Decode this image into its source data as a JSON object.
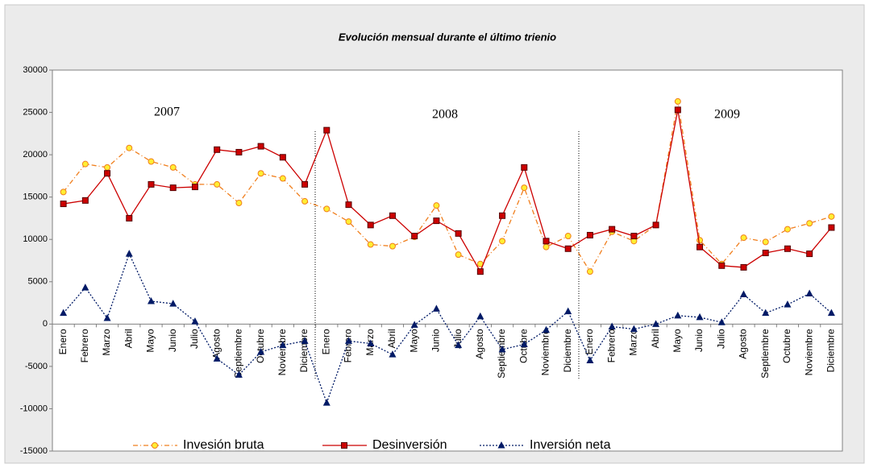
{
  "chart_data": {
    "type": "line",
    "title": "Evolución mensual durante el último trienio",
    "annotations": [
      "2007",
      "2008",
      "2009"
    ],
    "categories": [
      "Enero",
      "Febrero",
      "Marzo",
      "Abril",
      "Mayo",
      "Junio",
      "Julio",
      "Agosto",
      "Septiembre",
      "Octubre",
      "Noviembre",
      "Diciembre",
      "Enero",
      "Febrero",
      "Marzo",
      "Abril",
      "Mayo",
      "Junio",
      "Julio",
      "Agosto",
      "Septiembre",
      "Octubre",
      "Noviembre",
      "Diciembre",
      "Enero",
      "Febrero",
      "Marzo",
      "Abril",
      "Mayo",
      "Junio",
      "Julio",
      "Agosto",
      "Septiembre",
      "Octubre",
      "Noviembre",
      "Diciembre"
    ],
    "series": [
      {
        "name": "Invesión bruta",
        "color": "#f07f1e",
        "marker": "circle",
        "line_style": "dashdot",
        "values": [
          15600,
          18900,
          18500,
          20800,
          19200,
          18500,
          16500,
          16500,
          14300,
          17800,
          17200,
          14500,
          13600,
          12100,
          9400,
          9200,
          10300,
          14000,
          8200,
          7100,
          9800,
          16100,
          9100,
          10400,
          6200,
          10900,
          9800,
          11700,
          26300,
          9900,
          7100,
          10200,
          9700,
          11200,
          11900,
          12700
        ]
      },
      {
        "name": "Desinversión",
        "color": "#cc0000",
        "marker": "square",
        "line_style": "solid",
        "values": [
          14200,
          14600,
          17800,
          12500,
          16500,
          16100,
          16200,
          20600,
          20300,
          21000,
          19700,
          16500,
          22900,
          14100,
          11700,
          12800,
          10400,
          12200,
          10700,
          6200,
          12800,
          18500,
          9800,
          8900,
          10500,
          11200,
          10400,
          11700,
          25300,
          9100,
          6900,
          6700,
          8400,
          8900,
          8300,
          11400
        ]
      },
      {
        "name": "Inversión neta",
        "color": "#001a66",
        "marker": "triangle",
        "line_style": "dotted",
        "values": [
          1300,
          4300,
          700,
          8300,
          2700,
          2400,
          300,
          -4100,
          -6000,
          -3300,
          -2500,
          -2000,
          -9300,
          -2000,
          -2300,
          -3600,
          -100,
          1800,
          -2500,
          900,
          -3000,
          -2400,
          -700,
          1500,
          -4300,
          -300,
          -600,
          0,
          1000,
          800,
          200,
          3500,
          1300,
          2300,
          3600,
          1300
        ]
      }
    ],
    "ylim": [
      -15000,
      30000
    ],
    "yticks": [
      -15000,
      -10000,
      -5000,
      0,
      5000,
      10000,
      15000,
      20000,
      25000,
      30000
    ],
    "grid": false,
    "legend": "bottom"
  }
}
